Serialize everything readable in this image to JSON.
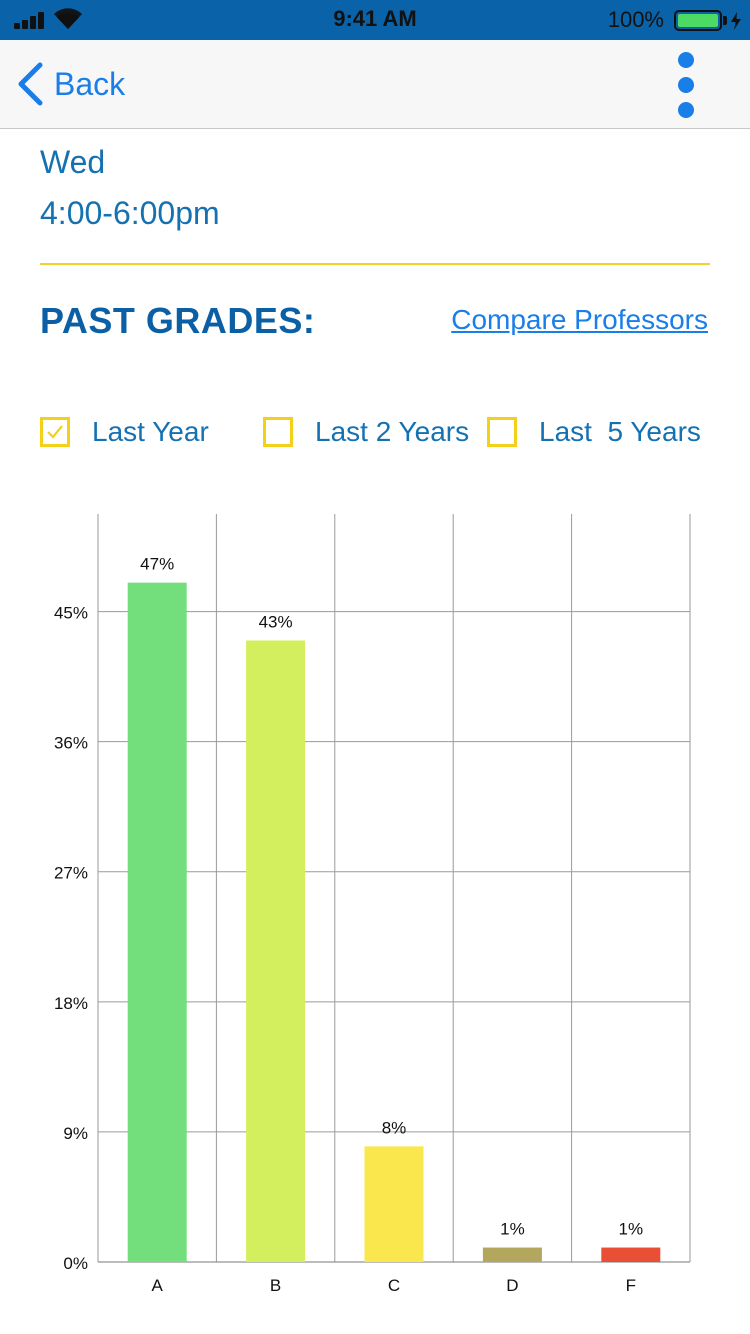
{
  "status_bar": {
    "time": "9:41 AM",
    "battery": "100%",
    "icons": [
      "signal-icon",
      "wifi-icon",
      "battery-icon",
      "charging-bolt-icon"
    ]
  },
  "nav": {
    "back_label": "Back",
    "more_icon": "more-vertical-icon"
  },
  "class_info": {
    "day": "Wed",
    "time": "4:00-6:00pm"
  },
  "past_grades": {
    "title": "PAST GRADES:",
    "compare_link": "Compare Professors"
  },
  "filters": [
    {
      "label": "Last Year",
      "checked": true
    },
    {
      "label": "Last 2 Years",
      "checked": false
    },
    {
      "label": "Last  5 Years",
      "checked": false
    }
  ],
  "colors": {
    "accent_blue": "#1471b2",
    "title_blue": "#0b5fa5",
    "link_blue": "#1a7ee8",
    "divider_yellow": "#f3d22a",
    "checkbox_yellow": "#f5d019"
  },
  "chart_data": {
    "type": "bar",
    "categories": [
      "A",
      "B",
      "C",
      "D",
      "F"
    ],
    "values": [
      47,
      43,
      8,
      1,
      1
    ],
    "data_labels": [
      "47%",
      "43%",
      "8%",
      "1%",
      "1%"
    ],
    "bar_colors": [
      "#72df7c",
      "#d4ef5e",
      "#f9e74d",
      "#b3a75e",
      "#e94f35"
    ],
    "yticks": [
      0,
      9,
      18,
      27,
      36,
      45
    ],
    "ytick_labels": [
      "0%",
      "9%",
      "18%",
      "27%",
      "36%",
      "45%"
    ],
    "ylim": [
      0,
      51.75
    ],
    "grid": true,
    "xlabel": "",
    "ylabel": ""
  }
}
